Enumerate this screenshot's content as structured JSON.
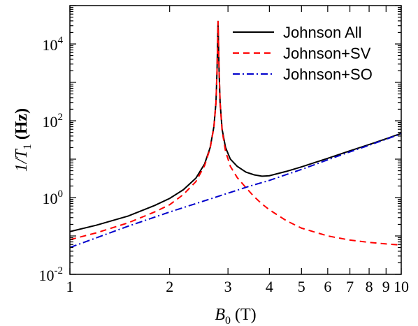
{
  "chart_data": {
    "type": "line",
    "title": "",
    "xlabel": "B_0 (T)",
    "ylabel": "1/T_1 (Hz)",
    "xscale": "log",
    "yscale": "log",
    "xlim": [
      1,
      10
    ],
    "ylim": [
      0.01,
      100000
    ],
    "grid": false,
    "legend_position": "top-right",
    "x_tick_labels": [
      "1",
      "2",
      "3",
      "4",
      "5",
      "6",
      "7",
      "8",
      "9",
      "10"
    ],
    "x_tick_values": [
      1,
      2,
      3,
      4,
      5,
      6,
      7,
      8,
      9,
      10
    ],
    "y_ticks": [
      {
        "value": 0.01,
        "base": "10",
        "exp": "-2"
      },
      {
        "value": 1,
        "base": "10",
        "exp": "0"
      },
      {
        "value": 100,
        "base": "10",
        "exp": "2"
      },
      {
        "value": 10000,
        "base": "10",
        "exp": "4"
      }
    ],
    "series": [
      {
        "name": "Johnson All",
        "color": "#000000",
        "dash": "solid",
        "x": [
          1.0,
          1.2,
          1.5,
          1.8,
          2.0,
          2.2,
          2.4,
          2.55,
          2.65,
          2.72,
          2.76,
          2.78,
          2.8,
          2.82,
          2.84,
          2.88,
          2.95,
          3.05,
          3.2,
          3.4,
          3.6,
          3.8,
          4.0,
          4.5,
          5.0,
          6.0,
          7.0,
          8.0,
          9.0,
          10.0
        ],
        "y": [
          0.13,
          0.19,
          0.33,
          0.62,
          0.95,
          1.6,
          3.2,
          7.5,
          20,
          70,
          300,
          2000,
          40000,
          2000,
          300,
          60,
          20,
          10,
          6.5,
          4.6,
          3.9,
          3.6,
          3.7,
          4.8,
          6.3,
          10.5,
          16.5,
          24,
          34,
          47
        ]
      },
      {
        "name": "Johnson+SV",
        "color": "#ff0000",
        "dash": "dashed",
        "x": [
          1.0,
          1.2,
          1.5,
          1.8,
          2.0,
          2.2,
          2.4,
          2.55,
          2.65,
          2.72,
          2.76,
          2.78,
          2.8,
          2.82,
          2.84,
          2.88,
          2.95,
          3.05,
          3.2,
          3.4,
          3.6,
          3.8,
          4.0,
          4.5,
          5.0,
          6.0,
          7.0,
          8.0,
          9.0,
          10.0
        ],
        "y": [
          0.08,
          0.12,
          0.22,
          0.42,
          0.65,
          1.2,
          2.6,
          6.8,
          19,
          68,
          300,
          2000,
          40000,
          2000,
          300,
          55,
          16,
          6.5,
          3.3,
          1.8,
          1.05,
          0.68,
          0.48,
          0.25,
          0.16,
          0.1,
          0.078,
          0.068,
          0.062,
          0.058
        ]
      },
      {
        "name": "Johnson+SO",
        "color": "#0000cc",
        "dash": "dashdot",
        "x": [
          1.0,
          1.5,
          2.0,
          2.5,
          3.0,
          3.5,
          4.0,
          5.0,
          6.0,
          7.0,
          8.0,
          9.0,
          10.0
        ],
        "y": [
          0.05,
          0.18,
          0.42,
          0.78,
          1.3,
          2.0,
          2.8,
          5.4,
          9.6,
          15.5,
          23,
          33,
          46
        ]
      }
    ]
  }
}
